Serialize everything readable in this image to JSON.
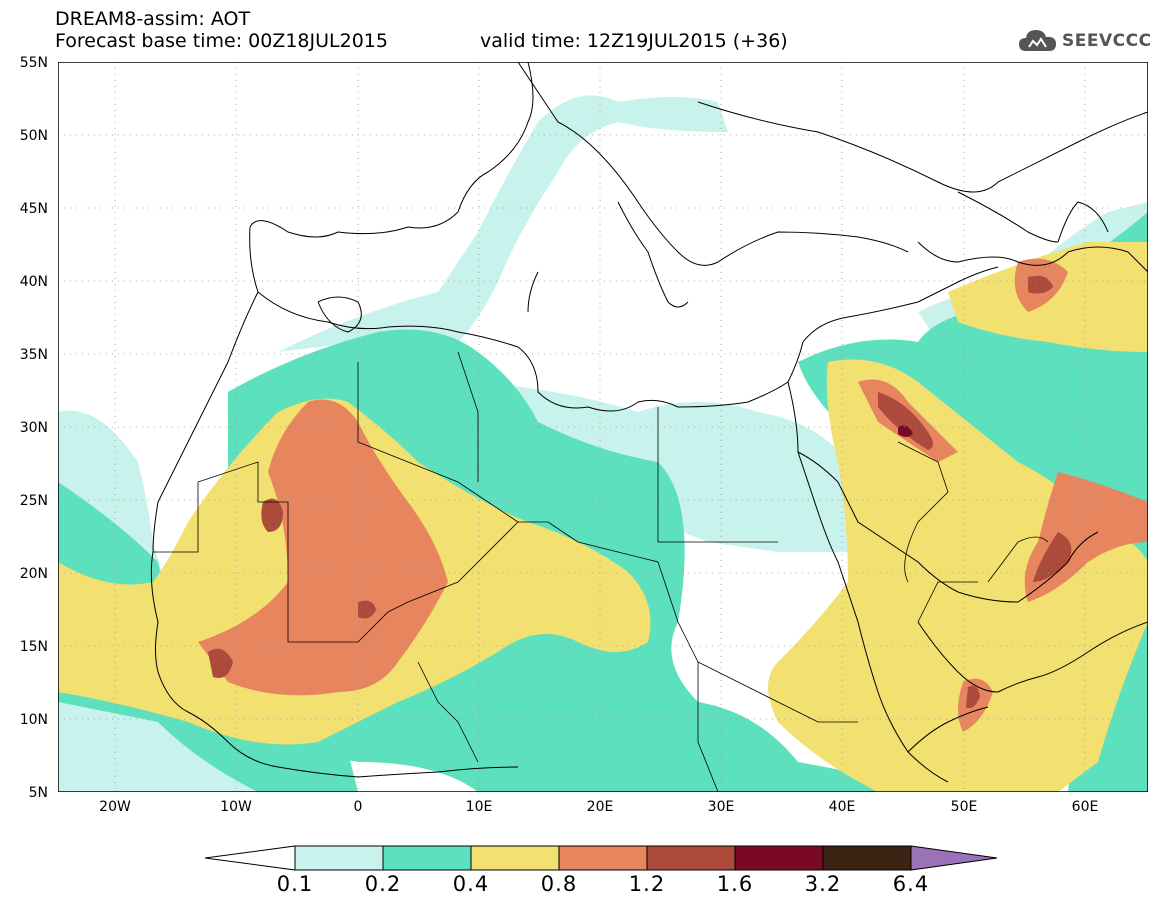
{
  "header": {
    "title": "DREAM8-assim: AOT",
    "base_time": "Forecast base time: 00Z18JUL2015",
    "valid_time": "valid time: 12Z19JUL2015 (+36)",
    "logo_text": "SEEVCCC"
  },
  "map": {
    "lat_labels": [
      "55N",
      "50N",
      "45N",
      "40N",
      "35N",
      "30N",
      "25N",
      "20N",
      "15N",
      "10N",
      "5N"
    ],
    "lon_labels": [
      "20W",
      "10W",
      "0",
      "10E",
      "20E",
      "30E",
      "40E",
      "50E",
      "60E"
    ]
  },
  "legend": {
    "labels": [
      "0.1",
      "0.2",
      "0.4",
      "0.8",
      "1.2",
      "1.6",
      "3.2",
      "6.4"
    ],
    "colors": [
      "#c8f2ec",
      "#5ce0be",
      "#f2e070",
      "#e6855e",
      "#ac4a3c",
      "#7a0a24",
      "#3c2414",
      "#9a72b8"
    ]
  },
  "colors": {
    "low": "#c8f2ec",
    "med": "#5ce0be",
    "mid": "#f2e070",
    "high": "#e6855e",
    "very_high": "#ac4a3c",
    "extreme": "#7a0a24"
  }
}
